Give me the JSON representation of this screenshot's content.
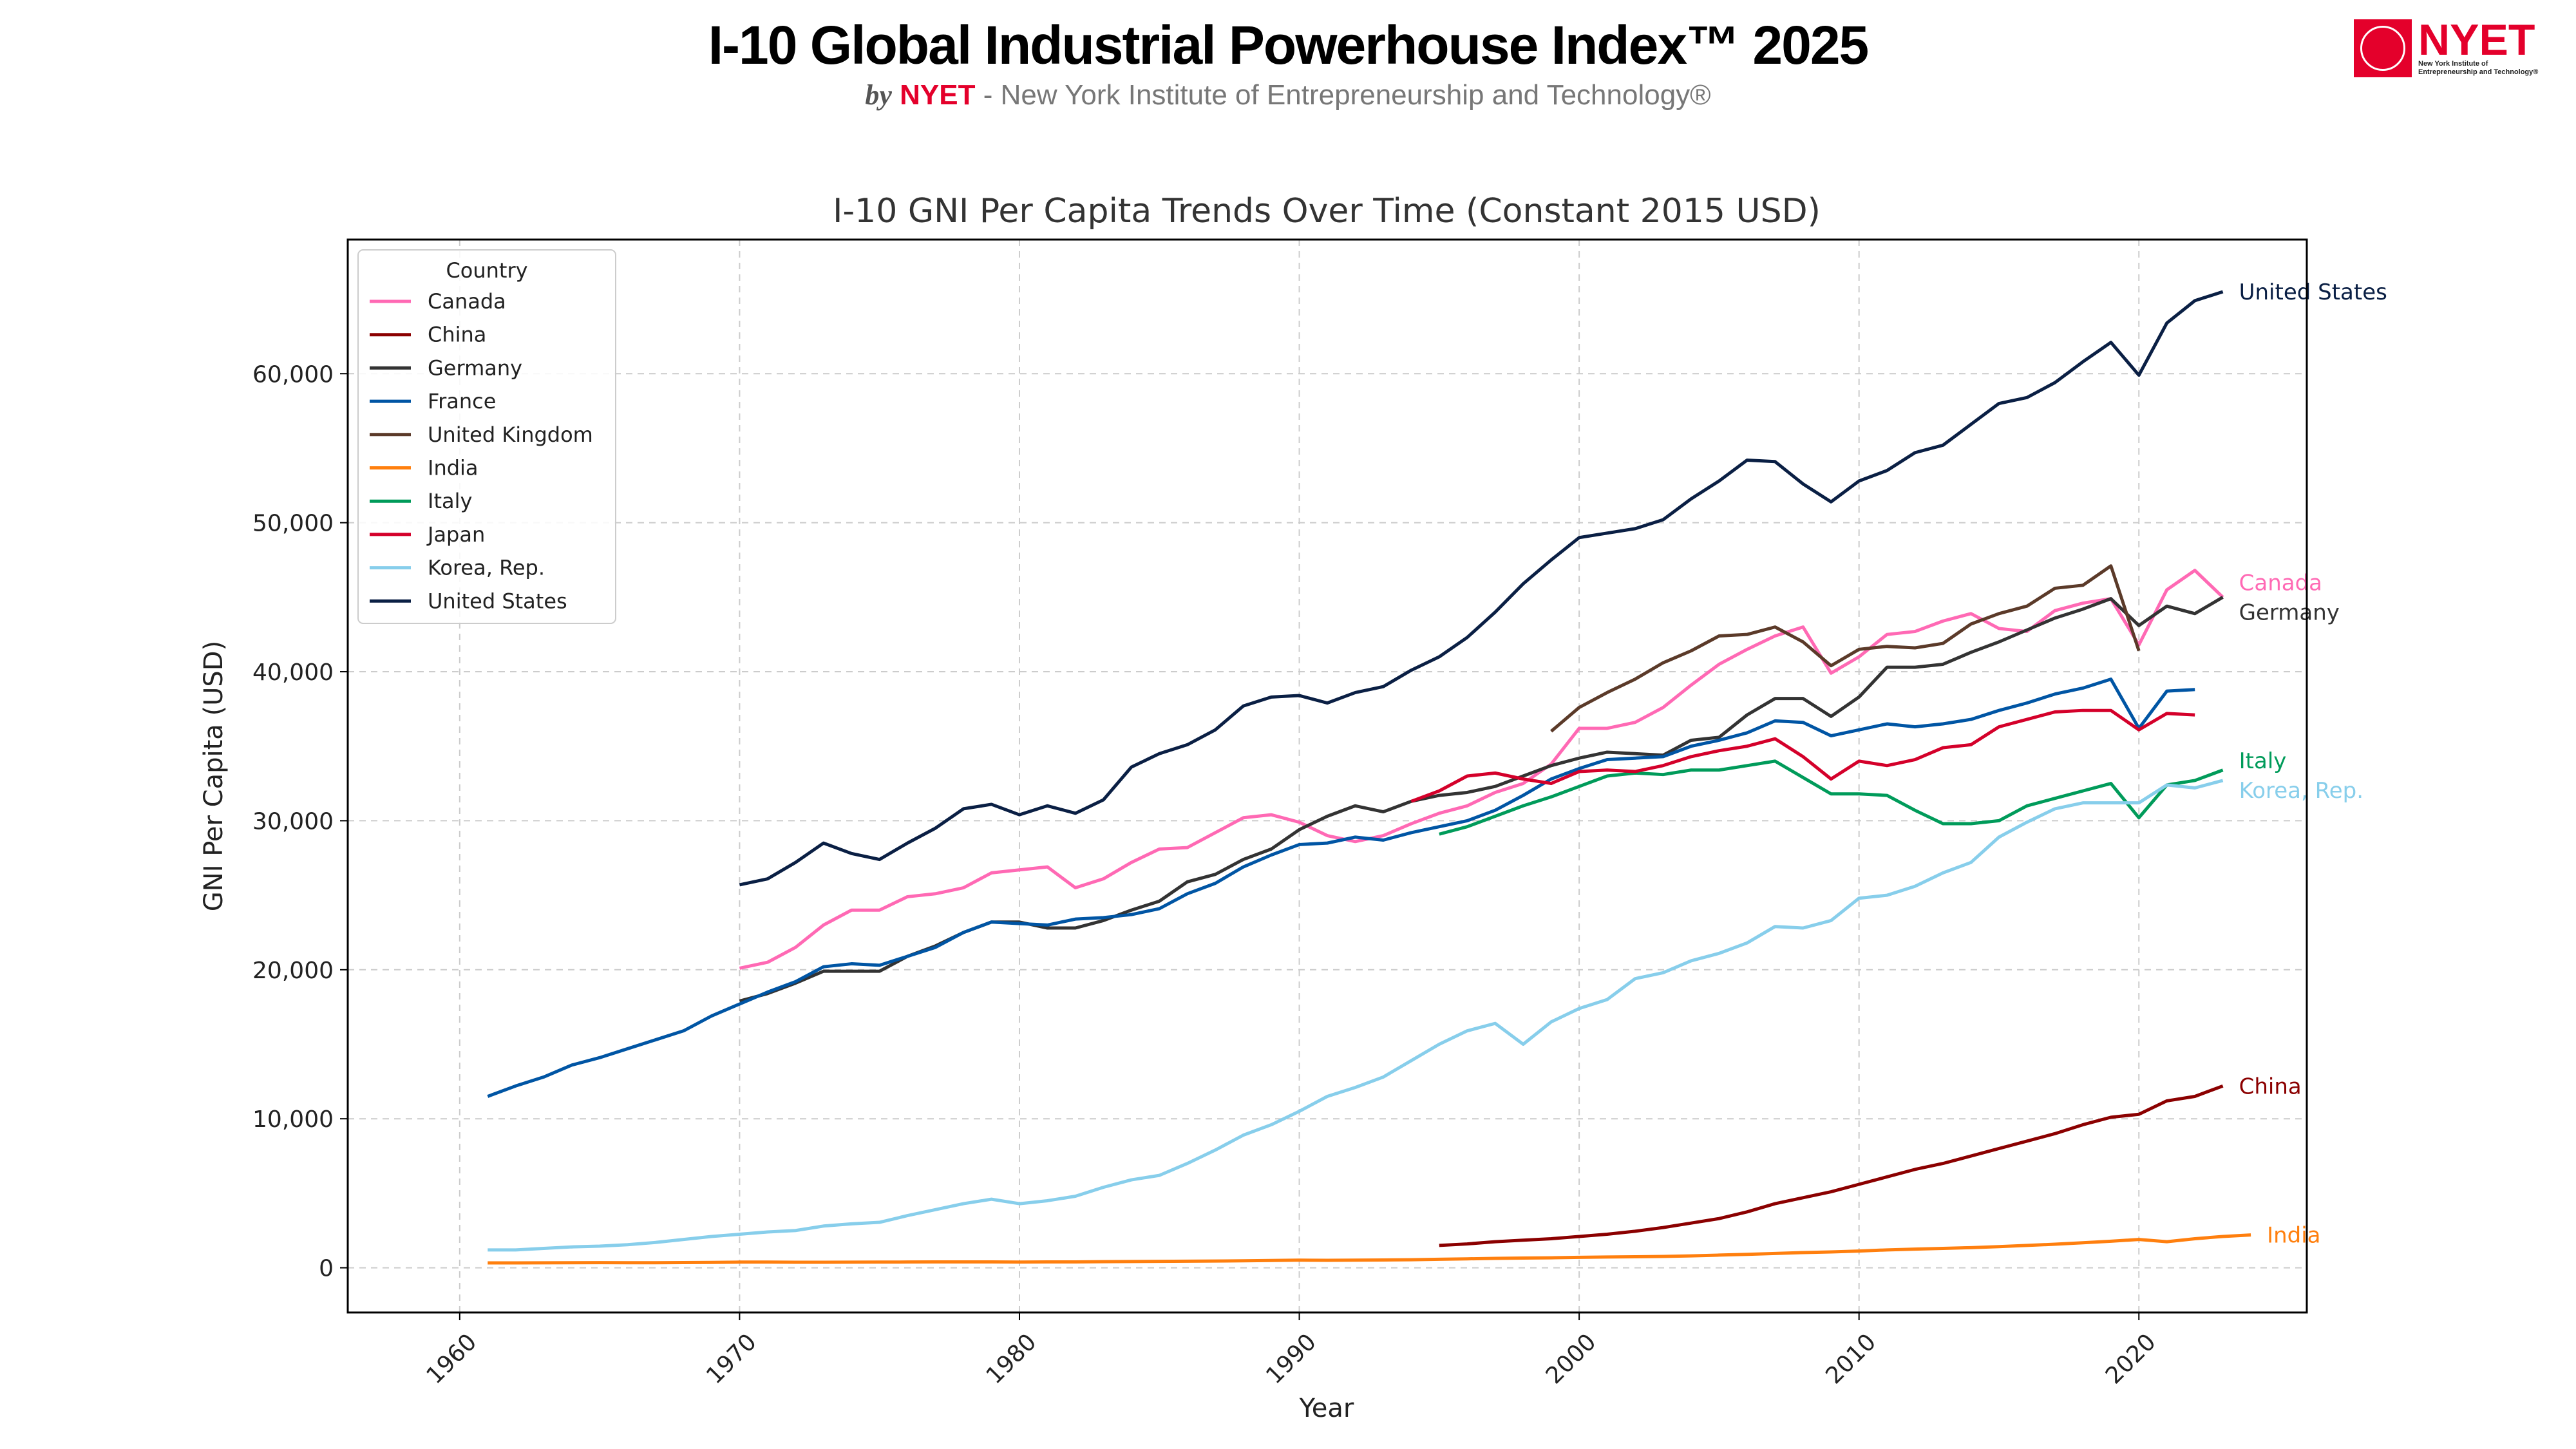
{
  "header": {
    "title": "I-10 Global Industrial Powerhouse Index™ 2025",
    "by": "by",
    "brand": "NYET",
    "subtitle": " - New York Institute of Entrepreneurship and Technology®"
  },
  "logo": {
    "wordmark": "NYET",
    "line1": "New York Institute of",
    "line2": "Entrepreneurship and Technology®"
  },
  "chart_data": {
    "type": "line",
    "title": "I-10 GNI Per Capita Trends Over Time (Constant 2015 USD)",
    "xlabel": "Year",
    "ylabel": "GNI Per Capita (USD)",
    "xlim": [
      1956,
      2026
    ],
    "ylim": [
      -3000,
      69000
    ],
    "xticks": [
      1960,
      1970,
      1980,
      1990,
      2000,
      2010,
      2020
    ],
    "yticks": [
      0,
      10000,
      20000,
      30000,
      40000,
      50000,
      60000
    ],
    "ytick_labels": [
      "0",
      "10,000",
      "20,000",
      "30,000",
      "40,000",
      "50,000",
      "60,000"
    ],
    "grid": true,
    "legend": {
      "title": "Country",
      "placement": "top-left"
    },
    "series": [
      {
        "name": "Canada",
        "color": "#ff69b4",
        "end_label": "Canada",
        "start": 1970,
        "values": [
          20100,
          20500,
          21500,
          23000,
          24000,
          24000,
          24900,
          25100,
          25500,
          26500,
          26700,
          26900,
          25500,
          26100,
          27200,
          28100,
          28200,
          29200,
          30200,
          30400,
          29900,
          29000,
          28600,
          29000,
          29800,
          30500,
          31000,
          31900,
          32500,
          33800,
          36200,
          36200,
          36600,
          37600,
          39100,
          40500,
          41500,
          42400,
          43000,
          39900,
          41000,
          42500,
          42700,
          43400,
          43900,
          42900,
          42700,
          44100,
          44600,
          44900,
          41800,
          45500,
          46800,
          45000
        ]
      },
      {
        "name": "China",
        "color": "#8b0000",
        "end_label": "China",
        "start": 1995,
        "values": [
          1500,
          1600,
          1750,
          1850,
          1950,
          2100,
          2250,
          2450,
          2700,
          3000,
          3300,
          3750,
          4300,
          4700,
          5100,
          5600,
          6100,
          6600,
          7000,
          7500,
          8000,
          8500,
          9000,
          9600,
          10100,
          10300,
          11200,
          11500,
          12200
        ]
      },
      {
        "name": "Germany",
        "color": "#333333",
        "end_label": "Germany",
        "start": 1970,
        "values": [
          17900,
          18400,
          19100,
          19900,
          19900,
          19900,
          20900,
          21600,
          22500,
          23200,
          23200,
          22800,
          22800,
          23300,
          24000,
          24600,
          25900,
          26400,
          27400,
          28100,
          29400,
          30300,
          31000,
          30600,
          31300,
          31700,
          31900,
          32300,
          33000,
          33700,
          34200,
          34600,
          34500,
          34400,
          35400,
          35600,
          37100,
          38200,
          38200,
          37000,
          38300,
          40300,
          40300,
          40500,
          41300,
          42000,
          42800,
          43600,
          44200,
          44900,
          43100,
          44400,
          43900,
          45000
        ]
      },
      {
        "name": "France",
        "color": "#0055a4",
        "end_label": "",
        "start": 1961,
        "values": [
          11500,
          12200,
          12800,
          13600,
          14100,
          14700,
          15300,
          15900,
          16900,
          17700,
          18500,
          19200,
          20200,
          20400,
          20300,
          20900,
          21500,
          22500,
          23200,
          23100,
          23000,
          23400,
          23500,
          23700,
          24100,
          25100,
          25800,
          26900,
          27700,
          28400,
          28500,
          28900,
          28700,
          29200,
          29600,
          30000,
          30700,
          31700,
          32800,
          33500,
          34100,
          34200,
          34300,
          35000,
          35400,
          35900,
          36700,
          36600,
          35700,
          36100,
          36500,
          36300,
          36500,
          36800,
          37400,
          37900,
          38500,
          38900,
          39500,
          36200,
          38700,
          38800
        ]
      },
      {
        "name": "United Kingdom",
        "color": "#5b3a29",
        "end_label": "",
        "start": 1999,
        "values": [
          36000,
          37600,
          38600,
          39500,
          40600,
          41400,
          42400,
          42500,
          43000,
          42000,
          40400,
          41500,
          41700,
          41600,
          41900,
          43200,
          43900,
          44400,
          45600,
          45800,
          47100,
          41400
        ]
      },
      {
        "name": "India",
        "color": "#ff7f0e",
        "end_label": "India",
        "start": 1961,
        "values": [
          330,
          330,
          335,
          340,
          345,
          340,
          340,
          350,
          360,
          380,
          380,
          370,
          370,
          375,
          380,
          385,
          390,
          395,
          395,
          380,
          390,
          395,
          410,
          420,
          430,
          440,
          450,
          470,
          490,
          510,
          500,
          510,
          520,
          540,
          570,
          600,
          630,
          650,
          670,
          700,
          720,
          740,
          760,
          800,
          850,
          900,
          960,
          1020,
          1060,
          1120,
          1200,
          1250,
          1300,
          1350,
          1420,
          1500,
          1580,
          1680,
          1780,
          1900,
          1750,
          1950,
          2100,
          2200
        ]
      },
      {
        "name": "Italy",
        "color": "#009b5a",
        "end_label": "Italy",
        "start": 1995,
        "values": [
          29100,
          29600,
          30300,
          31000,
          31600,
          32300,
          33000,
          33200,
          33100,
          33400,
          33400,
          33700,
          34000,
          32900,
          31800,
          31800,
          31700,
          30700,
          29800,
          29800,
          30000,
          31000,
          31500,
          32000,
          32500,
          30200,
          32400,
          32700,
          33400
        ]
      },
      {
        "name": "Japan",
        "color": "#d4002a",
        "end_label": "",
        "start": 1994,
        "values": [
          31300,
          32000,
          33000,
          33200,
          32800,
          32500,
          33300,
          33400,
          33300,
          33700,
          34300,
          34700,
          35000,
          35500,
          34300,
          32800,
          34000,
          33700,
          34100,
          34900,
          35100,
          36300,
          36800,
          37300,
          37400,
          37400,
          36100,
          37200,
          37100
        ]
      },
      {
        "name": "Korea, Rep.",
        "color": "#87ceeb",
        "end_label": "Korea, Rep.",
        "start": 1961,
        "values": [
          1200,
          1200,
          1300,
          1400,
          1450,
          1550,
          1700,
          1900,
          2100,
          2250,
          2400,
          2500,
          2800,
          2950,
          3050,
          3500,
          3900,
          4300,
          4600,
          4300,
          4500,
          4800,
          5400,
          5900,
          6200,
          7000,
          7900,
          8900,
          9600,
          10500,
          11500,
          12100,
          12800,
          13900,
          15000,
          15900,
          16400,
          15000,
          16500,
          17400,
          18000,
          19400,
          19800,
          20600,
          21100,
          21800,
          22900,
          22800,
          23300,
          24800,
          25000,
          25600,
          26500,
          27200,
          28900,
          29900,
          30800,
          31200,
          31200,
          31200,
          32400,
          32200,
          32700
        ]
      },
      {
        "name": "United States",
        "color": "#0a1f44",
        "end_label": "United States",
        "start": 1970,
        "values": [
          25700,
          26100,
          27200,
          28500,
          27800,
          27400,
          28500,
          29500,
          30800,
          31100,
          30400,
          31000,
          30500,
          31400,
          33600,
          34500,
          35100,
          36100,
          37700,
          38300,
          38400,
          37900,
          38600,
          39000,
          40100,
          41000,
          42300,
          44000,
          45900,
          47500,
          49000,
          49300,
          49600,
          50200,
          51600,
          52800,
          54200,
          54100,
          52600,
          51400,
          52800,
          53500,
          54700,
          55200,
          56600,
          58000,
          58400,
          59400,
          60800,
          62100,
          59900,
          63400,
          64900,
          65500
        ]
      }
    ]
  }
}
